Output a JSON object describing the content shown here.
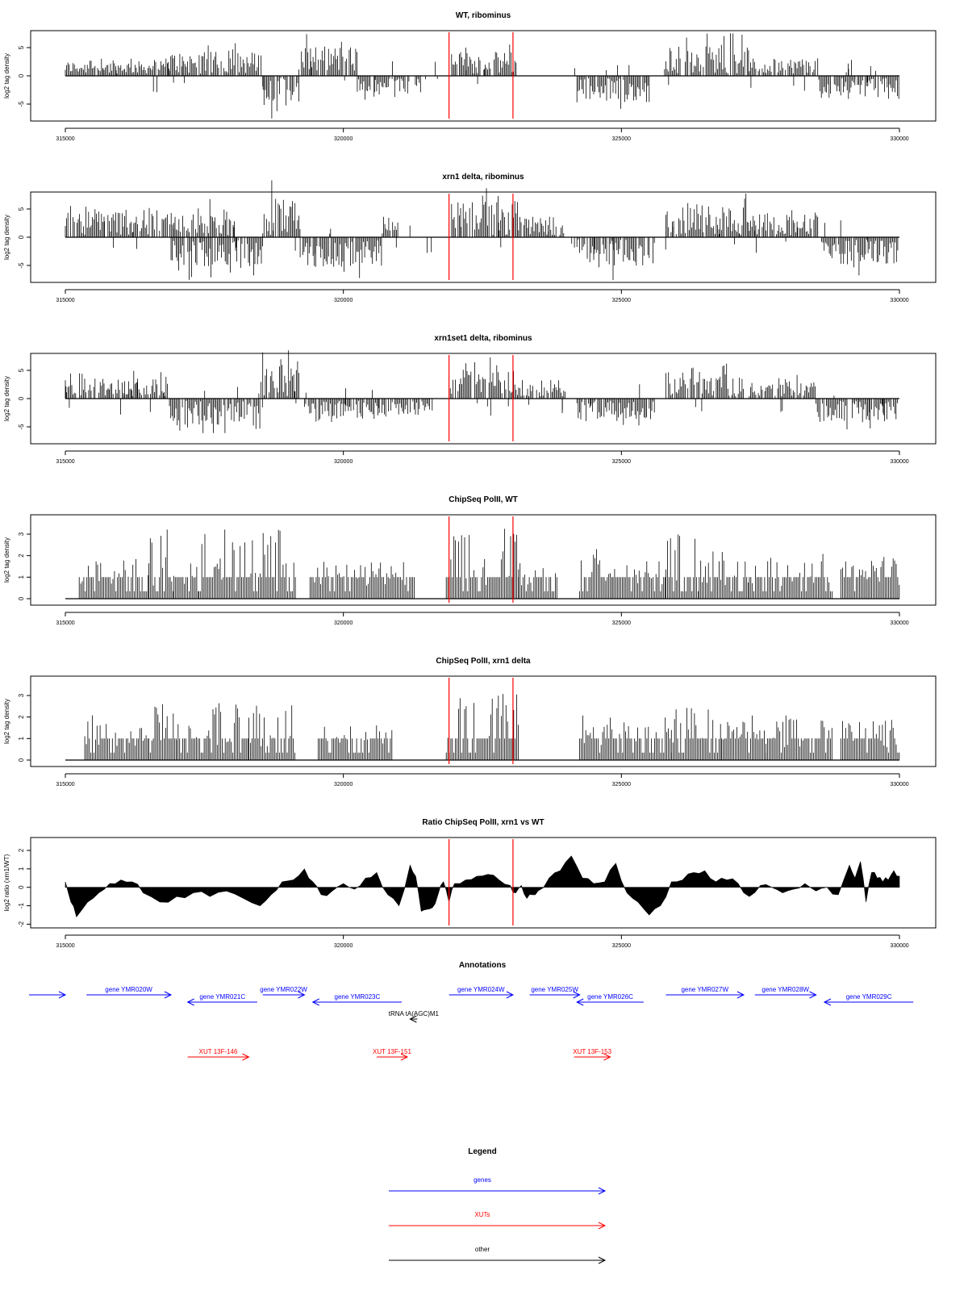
{
  "chart_data": [
    {
      "type": "bar",
      "title": "WT, ribominus",
      "ylabel": "log2 tag density",
      "xlim": [
        315000,
        330000
      ],
      "ylim": [
        -8,
        8
      ],
      "x_ticks": [
        315000,
        320000,
        325000,
        330000
      ],
      "y_ticks": [
        -5,
        0,
        5
      ],
      "markers_x": [
        321900,
        323050
      ],
      "segments": [
        {
          "x": [
            315000,
            316850
          ],
          "y": 2.0
        },
        {
          "x": [
            316850,
            318550
          ],
          "y": 3.5
        },
        {
          "x": [
            318550,
            319200
          ],
          "y": -4.5
        },
        {
          "x": [
            319200,
            320250
          ],
          "y": 4.5
        },
        {
          "x": [
            320250,
            321400
          ],
          "y": -2.5
        },
        {
          "x": [
            321900,
            323150
          ],
          "y": 3.5
        },
        {
          "x": [
            324200,
            325500
          ],
          "y": -4.0
        },
        {
          "x": [
            325800,
            327300
          ],
          "y": 4.5
        },
        {
          "x": [
            327300,
            328550
          ],
          "y": 2.5
        },
        {
          "x": [
            328550,
            330000
          ],
          "y": -3.5
        }
      ],
      "fill": "none"
    },
    {
      "type": "bar",
      "title": "xrn1 delta, ribominus",
      "ylabel": "log2 tag density",
      "xlim": [
        315000,
        330000
      ],
      "ylim": [
        -8,
        8
      ],
      "x_ticks": [
        315000,
        320000,
        325000,
        330000
      ],
      "y_ticks": [
        -5,
        0,
        5
      ],
      "markers_x": [
        321900,
        323050
      ],
      "segments": [
        {
          "x": [
            315000,
            318050
          ],
          "y": 4.0
        },
        {
          "x": [
            316900,
            318550
          ],
          "y": -4.5
        },
        {
          "x": [
            318550,
            319200
          ],
          "y": 6.0
        },
        {
          "x": [
            319200,
            320700
          ],
          "y": -4.5
        },
        {
          "x": [
            320700,
            321000
          ],
          "y": 3.0
        },
        {
          "x": [
            321900,
            323150
          ],
          "y": 5.5
        },
        {
          "x": [
            323150,
            324000
          ],
          "y": 3.0
        },
        {
          "x": [
            324200,
            325600
          ],
          "y": -4.5
        },
        {
          "x": [
            325800,
            327300
          ],
          "y": 5.0
        },
        {
          "x": [
            327300,
            328550
          ],
          "y": 3.5
        },
        {
          "x": [
            328600,
            330000
          ],
          "y": -4.0
        }
      ],
      "fill": "none"
    },
    {
      "type": "bar",
      "title": "xrn1set1 delta, ribominus",
      "ylabel": "log2 tag density",
      "xlim": [
        315000,
        330000
      ],
      "ylim": [
        -8,
        8
      ],
      "x_ticks": [
        315000,
        320000,
        325000,
        330000
      ],
      "y_ticks": [
        -5,
        0,
        5
      ],
      "markers_x": [
        321900,
        323050
      ],
      "segments": [
        {
          "x": [
            315000,
            316850
          ],
          "y": 3.0
        },
        {
          "x": [
            316850,
            318550
          ],
          "y": -4.0
        },
        {
          "x": [
            318550,
            319200
          ],
          "y": 6.0
        },
        {
          "x": [
            319300,
            321600
          ],
          "y": -2.5
        },
        {
          "x": [
            321900,
            323150
          ],
          "y": 4.5
        },
        {
          "x": [
            323150,
            324000
          ],
          "y": 2.0
        },
        {
          "x": [
            324200,
            325600
          ],
          "y": -3.0
        },
        {
          "x": [
            325800,
            327200
          ],
          "y": 4.0
        },
        {
          "x": [
            327300,
            328500
          ],
          "y": 2.5
        },
        {
          "x": [
            328500,
            330000
          ],
          "y": -3.5
        }
      ],
      "fill": "none"
    },
    {
      "type": "bar",
      "title": "ChipSeq PolII, WT",
      "ylabel": "log2 tag density",
      "xlim": [
        315000,
        330000
      ],
      "ylim": [
        -0.3,
        3.9
      ],
      "x_ticks": [
        315000,
        320000,
        325000,
        330000
      ],
      "y_ticks": [
        0,
        1,
        2,
        3
      ],
      "markers_x": [
        321900,
        323050
      ],
      "segments": [
        {
          "x": [
            315250,
            316500
          ],
          "y": 1.4
        },
        {
          "x": [
            316500,
            316950
          ],
          "y": 2.4
        },
        {
          "x": [
            316950,
            317400
          ],
          "y": 1.3
        },
        {
          "x": [
            317400,
            319150
          ],
          "y": 2.3
        },
        {
          "x": [
            319400,
            321300
          ],
          "y": 1.0
        },
        {
          "x": [
            321850,
            323150
          ],
          "y": 2.4
        },
        {
          "x": [
            323150,
            323850
          ],
          "y": 1.0
        },
        {
          "x": [
            324250,
            324850
          ],
          "y": 1.5
        },
        {
          "x": [
            324850,
            325800
          ],
          "y": 1.2
        },
        {
          "x": [
            325800,
            326400
          ],
          "y": 2.2
        },
        {
          "x": [
            326400,
            327300
          ],
          "y": 1.4
        },
        {
          "x": [
            327300,
            328800
          ],
          "y": 1.5
        },
        {
          "x": [
            328950,
            330000
          ],
          "y": 1.2
        }
      ],
      "fill": "none"
    },
    {
      "type": "bar",
      "title": "ChipSeq PolII, xrn1 delta",
      "ylabel": "log2 tag density",
      "xlim": [
        315000,
        330000
      ],
      "ylim": [
        -0.3,
        3.9
      ],
      "x_ticks": [
        315000,
        320000,
        325000,
        330000
      ],
      "y_ticks": [
        0,
        1,
        2,
        3
      ],
      "markers_x": [
        321900,
        323050
      ],
      "segments": [
        {
          "x": [
            315350,
            316500
          ],
          "y": 1.3
        },
        {
          "x": [
            316500,
            317000
          ],
          "y": 2.0
        },
        {
          "x": [
            317000,
            317600
          ],
          "y": 1.1
        },
        {
          "x": [
            317600,
            318300
          ],
          "y": 1.8
        },
        {
          "x": [
            318300,
            319150
          ],
          "y": 1.7
        },
        {
          "x": [
            319550,
            320900
          ],
          "y": 0.9
        },
        {
          "x": [
            321850,
            323150
          ],
          "y": 2.2
        },
        {
          "x": [
            324250,
            325100
          ],
          "y": 1.4
        },
        {
          "x": [
            325100,
            325900
          ],
          "y": 1.2
        },
        {
          "x": [
            325900,
            326800
          ],
          "y": 1.6
        },
        {
          "x": [
            326800,
            327600
          ],
          "y": 1.3
        },
        {
          "x": [
            327600,
            328800
          ],
          "y": 1.3
        },
        {
          "x": [
            328950,
            330000
          ],
          "y": 1.3
        }
      ],
      "fill": "none"
    },
    {
      "type": "area",
      "title": "Ratio ChipSeq PolII, xrn1 vs WT",
      "ylabel": "log2 ratio (xrn1/WT)",
      "xlim": [
        315000,
        330000
      ],
      "ylim": [
        -2.2,
        2.7
      ],
      "x_ticks": [
        315000,
        320000,
        325000,
        330000
      ],
      "y_ticks": [
        -2,
        -1,
        0,
        1,
        2
      ],
      "markers_x": [
        321900,
        323050
      ],
      "x": [
        315000,
        315100,
        315200,
        315400,
        315600,
        315800,
        316000,
        316200,
        316400,
        316700,
        317000,
        317300,
        317600,
        317900,
        318200,
        318500,
        318700,
        318900,
        319100,
        319300,
        319450,
        319600,
        319800,
        320000,
        320200,
        320400,
        320600,
        320800,
        321000,
        321200,
        321300,
        321400,
        321500,
        321600,
        321700,
        321800,
        321900,
        322000,
        322200,
        322400,
        322600,
        322800,
        323000,
        323100,
        323200,
        323300,
        323400,
        323500,
        323700,
        323900,
        324100,
        324300,
        324500,
        324700,
        324900,
        325100,
        325300,
        325500,
        325700,
        325900,
        326100,
        326300,
        326500,
        326700,
        326900,
        327100,
        327300,
        327500,
        327700,
        327900,
        328100,
        328300,
        328500,
        328700,
        328900,
        329100,
        329200,
        329300,
        329400,
        329500,
        329600,
        329700,
        329800,
        329900,
        330000
      ],
      "values": [
        0.3,
        -0.8,
        -1.6,
        -0.8,
        -0.3,
        0.2,
        0.4,
        0.3,
        -0.3,
        -0.8,
        -0.5,
        -0.3,
        -0.5,
        -0.2,
        -0.6,
        -1.0,
        -0.4,
        0.3,
        0.4,
        1.0,
        0.3,
        -0.4,
        -0.2,
        0.2,
        -0.1,
        0.5,
        0.8,
        -0.4,
        -1.0,
        1.2,
        0.6,
        -1.3,
        -1.2,
        -1.1,
        -0.4,
        0.3,
        -0.8,
        0.2,
        0.4,
        0.6,
        0.7,
        0.4,
        0.1,
        -0.3,
        0.1,
        -0.6,
        -0.4,
        -0.2,
        0.5,
        0.9,
        1.7,
        0.5,
        0.2,
        0.3,
        1.3,
        -0.3,
        -0.8,
        -1.5,
        -1.0,
        0.3,
        0.4,
        0.8,
        0.9,
        0.3,
        0.4,
        0.2,
        -0.5,
        0.1,
        0.0,
        -0.3,
        -0.1,
        0.2,
        -0.2,
        0.0,
        -0.4,
        1.2,
        0.5,
        1.4,
        -0.8,
        0.8,
        0.5,
        0.3,
        0.4,
        0.9,
        0.6
      ],
      "fill": "#000000"
    }
  ],
  "annotations": {
    "title": "Annotations",
    "xlim": [
      315000,
      330000
    ],
    "items": [
      {
        "name": "",
        "x1": 314300,
        "x2": 315000,
        "row": 0,
        "dir": "right",
        "color": "#0000ff"
      },
      {
        "name": "gene YMR020W",
        "x1": 315380,
        "x2": 316900,
        "row": 0,
        "dir": "right",
        "color": "#0000ff"
      },
      {
        "name": "gene YMR021C",
        "x1": 317200,
        "x2": 318450,
        "row": 1,
        "dir": "left",
        "color": "#0000ff"
      },
      {
        "name": "gene YMR022W",
        "x1": 318550,
        "x2": 319300,
        "row": 0,
        "dir": "right",
        "color": "#0000ff"
      },
      {
        "name": "gene YMR023C",
        "x1": 319450,
        "x2": 321050,
        "row": 1,
        "dir": "left",
        "color": "#0000ff"
      },
      {
        "name": "gene YMR024W",
        "x1": 321900,
        "x2": 323050,
        "row": 0,
        "dir": "right",
        "color": "#0000ff"
      },
      {
        "name": "gene YMR025W",
        "x1": 323350,
        "x2": 324250,
        "row": 0,
        "dir": "right",
        "color": "#0000ff"
      },
      {
        "name": "gene YMR026C",
        "x1": 324200,
        "x2": 325400,
        "row": 1,
        "dir": "left",
        "color": "#0000ff"
      },
      {
        "name": "gene YMR027W",
        "x1": 325800,
        "x2": 327200,
        "row": 0,
        "dir": "right",
        "color": "#0000ff"
      },
      {
        "name": "gene YMR028W",
        "x1": 327400,
        "x2": 328500,
        "row": 0,
        "dir": "right",
        "color": "#0000ff"
      },
      {
        "name": "gene YMR029C",
        "x1": 328650,
        "x2": 330250,
        "row": 1,
        "dir": "left",
        "color": "#0000ff"
      },
      {
        "name": "tRNA tA(AGC)M1",
        "x1": 321200,
        "x2": 321330,
        "row": 2,
        "dir": "left",
        "color": "#000000"
      },
      {
        "name": "XUT 13F-146",
        "x1": 317200,
        "x2": 318300,
        "row": 3,
        "dir": "right",
        "color": "#ff0000"
      },
      {
        "name": "XUT 13F-151",
        "x1": 320600,
        "x2": 321150,
        "row": 3,
        "dir": "right",
        "color": "#ff0000"
      },
      {
        "name": "XUT 13F-153",
        "x1": 324150,
        "x2": 324800,
        "row": 3,
        "dir": "right",
        "color": "#ff0000"
      }
    ]
  },
  "legend": {
    "title": "Legend",
    "items": [
      {
        "label": "genes",
        "color": "#0000ff"
      },
      {
        "label": "XUTs",
        "color": "#ff0000"
      },
      {
        "label": "other",
        "color": "#000000"
      }
    ]
  }
}
